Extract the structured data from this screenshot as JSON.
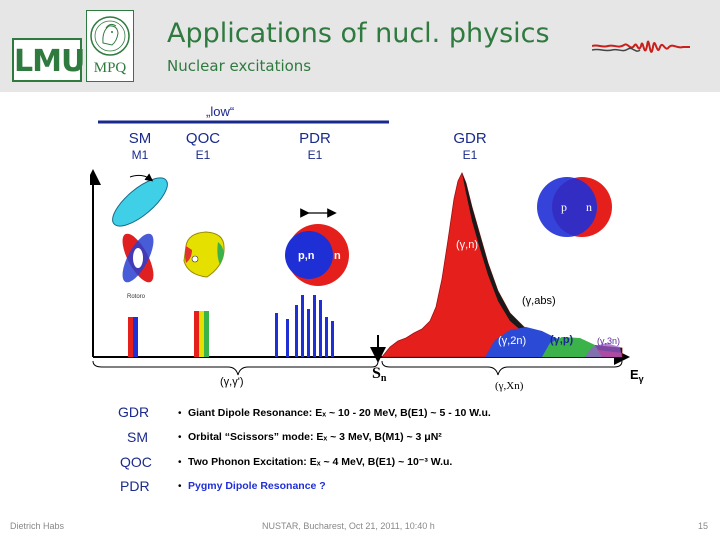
{
  "header": {
    "title": "Applications of nucl. physics",
    "subtitle": "Nuclear excitations",
    "logo_lmu": "LMU",
    "logo_mpq": "MPQ"
  },
  "figure": {
    "low_label": "„low“",
    "modes": [
      {
        "name": "SM",
        "multipolarity": "M1"
      },
      {
        "name": "QOC",
        "multipolarity": "E1"
      },
      {
        "name": "PDR",
        "multipolarity": "E1"
      },
      {
        "name": "GDR",
        "multipolarity": "E1"
      }
    ],
    "rotor_label": "Rotoro",
    "pdr_nucleus": {
      "core": "p,n",
      "skin": "n"
    },
    "gdr_nucleus": {
      "p": "p",
      "n": "n"
    },
    "channels": {
      "gamma_n": "(γ,n)",
      "gamma_abs": "(γ,abs)",
      "gamma_2n": "(γ,2n)",
      "gamma_p": "(γ,p)",
      "gamma_3n": "(γ,3n)"
    },
    "sn_main": "S",
    "sn_sub": "n",
    "egamma_main": "E",
    "egamma_sub": "γ",
    "region_gg": "(γ,γ')",
    "region_gxn": "(γ,Xn)",
    "legend": [
      {
        "abbr": "GDR",
        "text": "Giant Dipole Resonance:  Eₓ ~ 10 - 20 MeV, B(E1) ~ 5 - 10 W.u."
      },
      {
        "abbr": "SM",
        "text": "Orbital “Scissors” mode: Eₓ ~ 3 MeV, B(M1) ~ 3 μN²"
      },
      {
        "abbr": "QOC",
        "text": "Two Phonon Excitation:    Eₓ ~ 4 MeV, B(E1) ~ 10⁻³ W.u."
      },
      {
        "abbr": "PDR",
        "text": "Pygmy Dipole Resonance ?"
      }
    ],
    "legend_bullet": "•"
  },
  "footer": {
    "author": "Dietrich Habs",
    "event": "NUSTAR, Bucharest, Oct 21, 2011, 10:40 h",
    "page": "15"
  },
  "colors": {
    "accent_green": "#2f7a3f",
    "mode_label_blue": "#1a2a8c",
    "gdr_red": "#e5201c",
    "pdr_blue": "#1f2fd6",
    "gamma_2n_blue": "#2b4bd6",
    "gamma_p_green": "#3cb24a",
    "gamma_3n_purple": "#9a5ad0",
    "pdr_text_blue": "#1f2fd6"
  }
}
